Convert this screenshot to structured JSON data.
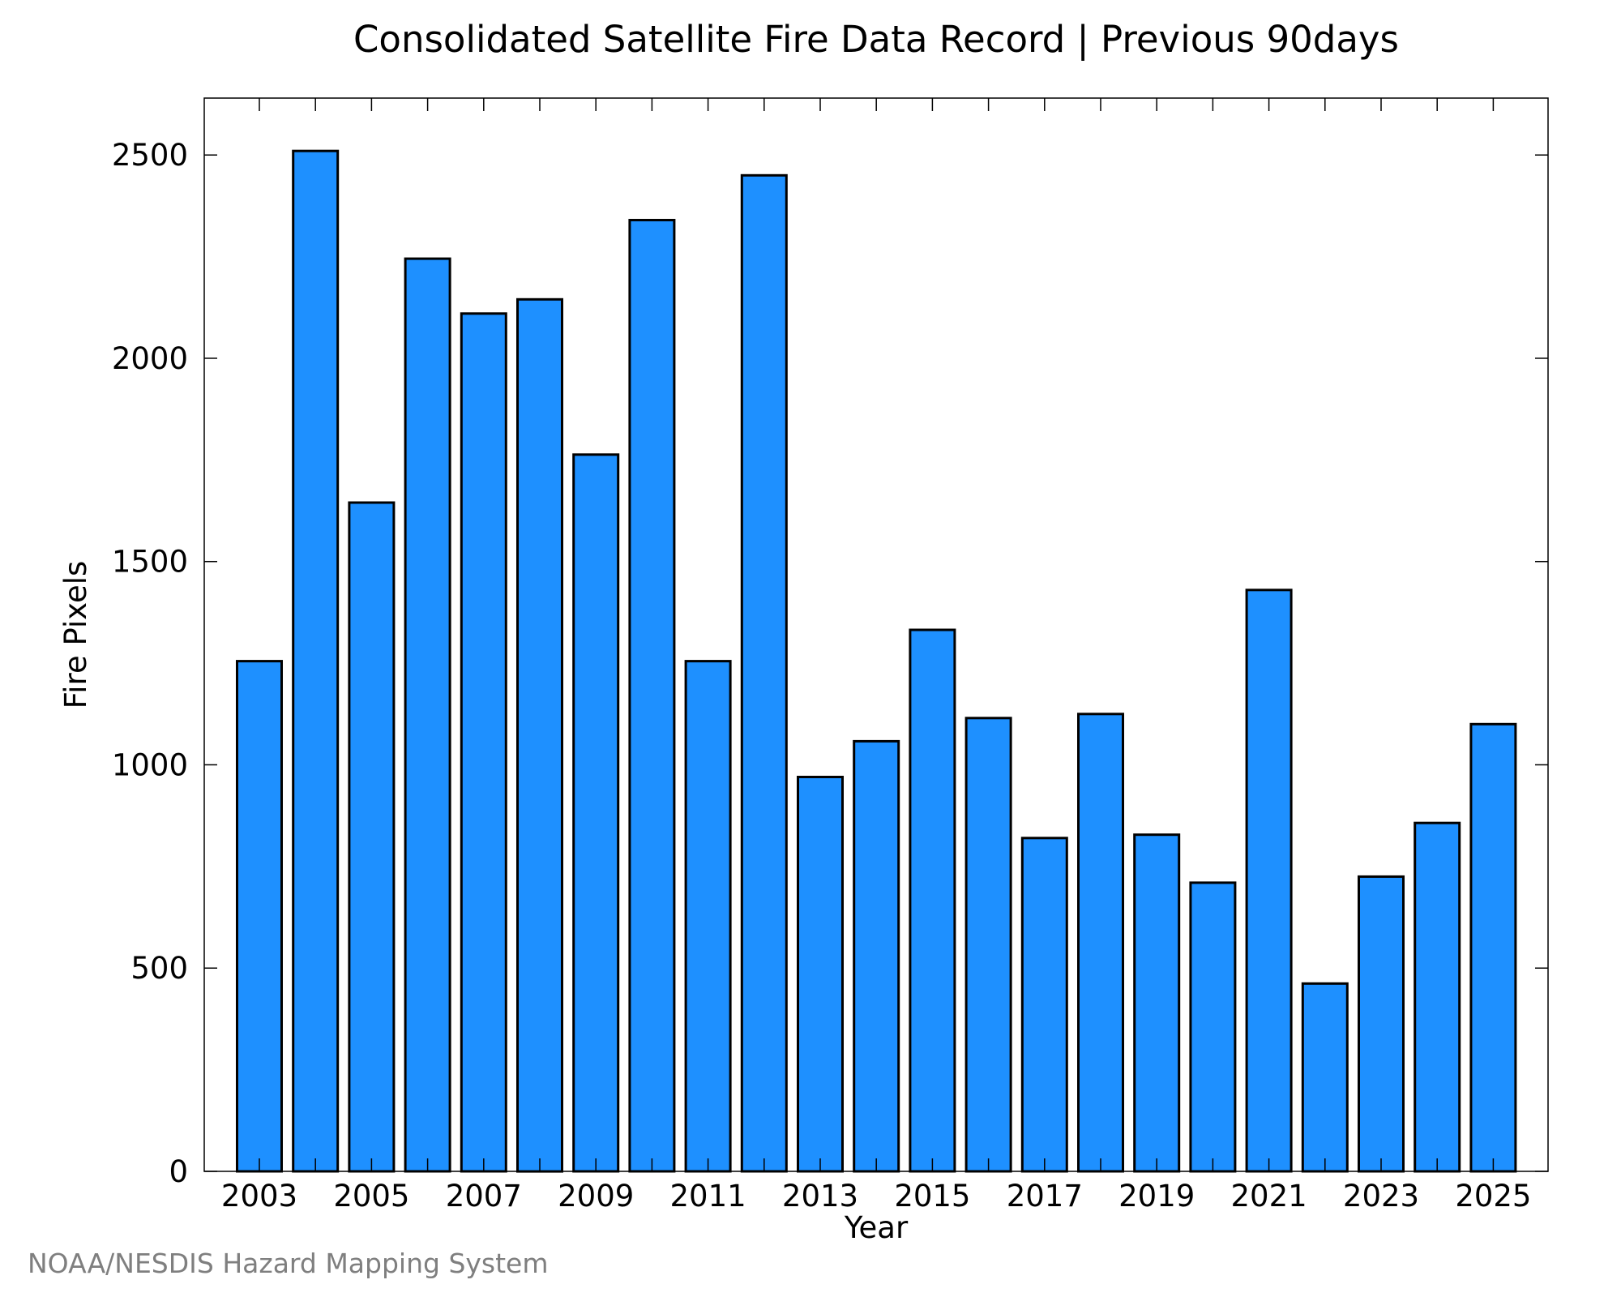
{
  "credit": "NOAA/NESDIS Hazard Mapping System",
  "chart_data": {
    "type": "bar",
    "title": "Consolidated Satellite Fire Data Record | Previous 90days",
    "xlabel": "Year",
    "ylabel": "Fire Pixels",
    "categories": [
      "2003",
      "2004",
      "2005",
      "2006",
      "2007",
      "2008",
      "2009",
      "2010",
      "2011",
      "2012",
      "2013",
      "2014",
      "2015",
      "2016",
      "2017",
      "2018",
      "2019",
      "2020",
      "2021",
      "2022",
      "2023",
      "2024",
      "2025"
    ],
    "values": [
      1255,
      2510,
      1645,
      2245,
      2110,
      2145,
      1763,
      2340,
      1255,
      2450,
      970,
      1058,
      1332,
      1115,
      820,
      1125,
      828,
      710,
      1430,
      462,
      725,
      857,
      1100
    ],
    "ylim": [
      0,
      2640
    ],
    "yticks": [
      0,
      500,
      1000,
      1500,
      2000,
      2500
    ],
    "xtick_labels": [
      "2003",
      "2005",
      "2007",
      "2009",
      "2011",
      "2013",
      "2015",
      "2017",
      "2019",
      "2021",
      "2023",
      "2025"
    ],
    "bar_color": "#1e90ff",
    "grid": false
  }
}
